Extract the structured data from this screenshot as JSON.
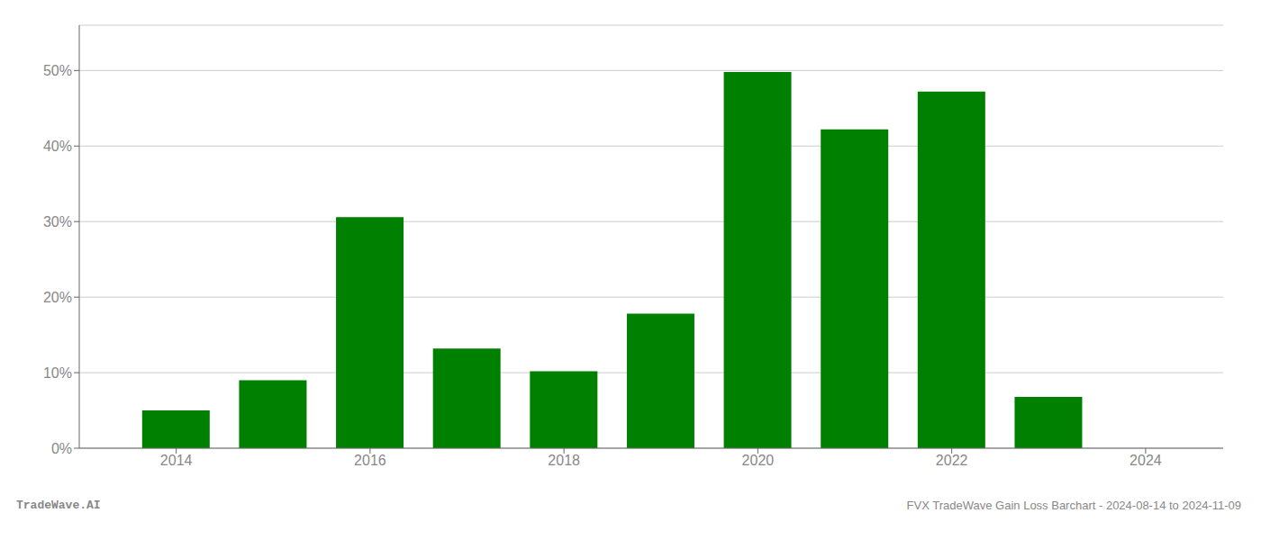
{
  "chart_data": {
    "type": "bar",
    "title": "FVX TradeWave Gain Loss Barchart - 2024-08-14 to 2024-11-09",
    "annotations": [
      "TradeWave.AI"
    ],
    "x": [
      2014,
      2015,
      2016,
      2017,
      2018,
      2019,
      2020,
      2021,
      2022,
      2023,
      2024
    ],
    "values": [
      0.05,
      0.09,
      0.306,
      0.132,
      0.102,
      0.178,
      0.498,
      0.422,
      0.472,
      0.068,
      0.0
    ],
    "color": "#008000",
    "xlim": [
      2013,
      2024.8
    ],
    "xticks": [
      2014,
      2016,
      2018,
      2020,
      2022,
      2024
    ],
    "ylim": [
      0,
      0.56
    ],
    "yticks": [
      {
        "value": 0.0,
        "label": "0%"
      },
      {
        "value": 0.1,
        "label": "10%"
      },
      {
        "value": 0.2,
        "label": "20%"
      },
      {
        "value": 0.3,
        "label": "30%"
      },
      {
        "value": 0.4,
        "label": "40%"
      },
      {
        "value": 0.5,
        "label": "50%"
      }
    ],
    "grid": true
  }
}
